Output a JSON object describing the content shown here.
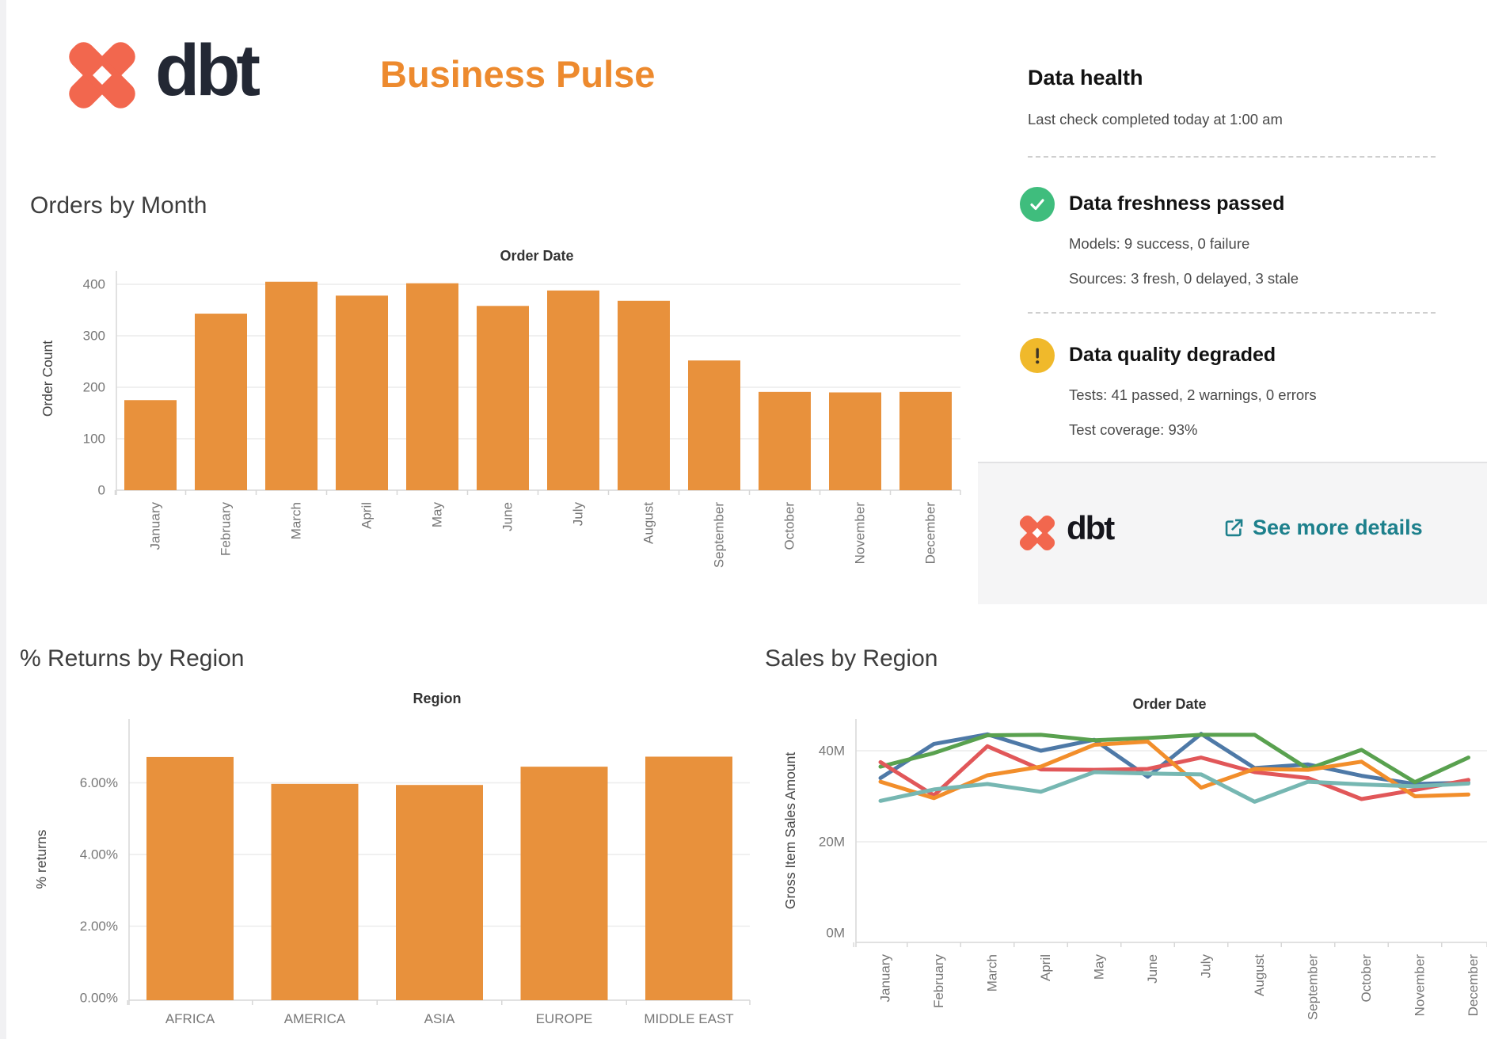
{
  "header": {
    "brand_wordmark": "dbt",
    "title": "Business Pulse"
  },
  "data_health": {
    "title": "Data health",
    "subtitle": "Last check completed today at 1:00 am",
    "freshness": {
      "title": "Data freshness passed",
      "line1": "Models: 9 success, 0 failure",
      "line2": "Sources: 3 fresh, 0 delayed, 3 stale"
    },
    "quality": {
      "title": "Data quality degraded",
      "line1": "Tests: 41 passed, 2 warnings, 0 errors",
      "line2": "Test coverage: 93%"
    },
    "footer": {
      "brand_wordmark": "dbt",
      "link_label": "See more details"
    }
  },
  "colors": {
    "bar_orange": "#E8913C",
    "brand_coral": "#F2674E",
    "title_orange": "#ED8A2E",
    "link_teal": "#1D808C",
    "success_green": "#3FBD7D",
    "warning_yellow": "#F0B92B"
  },
  "chart_data": [
    {
      "id": "orders-by-month",
      "type": "bar",
      "heading": "Orders by Month",
      "title": "Order Date",
      "ylabel": "Order Count",
      "categories": [
        "January",
        "February",
        "March",
        "April",
        "May",
        "June",
        "July",
        "August",
        "September",
        "October",
        "November",
        "December"
      ],
      "values": [
        175,
        343,
        405,
        378,
        402,
        358,
        388,
        368,
        252,
        191,
        190,
        191
      ],
      "yticks": [
        0,
        100,
        200,
        300,
        400
      ],
      "ytick_labels": [
        "0",
        "100",
        "200",
        "300",
        "400"
      ],
      "ylim": [
        0,
        430
      ],
      "grid": true,
      "bar_color": "#E8913C"
    },
    {
      "id": "returns-by-region",
      "type": "bar",
      "heading": "% Returns by Region",
      "title": "Region",
      "ylabel": "% returns",
      "categories": [
        "AFRICA",
        "AMERICA",
        "ASIA",
        "EUROPE",
        "MIDDLE EAST"
      ],
      "values": [
        6.72,
        5.97,
        5.94,
        6.45,
        6.73
      ],
      "yticks": [
        0,
        2,
        4,
        6
      ],
      "ytick_labels": [
        "0.00%",
        "2.00%",
        "4.00%",
        "6.00%"
      ],
      "ylim": [
        0,
        7.8
      ],
      "grid": true,
      "bar_color": "#E8913C"
    },
    {
      "id": "sales-by-region",
      "type": "line",
      "heading": "Sales by Region",
      "title": "Order Date",
      "ylabel": "Gross Item Sales Amount",
      "categories": [
        "January",
        "February",
        "March",
        "April",
        "May",
        "June",
        "July",
        "August",
        "September",
        "October",
        "November",
        "December"
      ],
      "yticks": [
        0,
        20,
        40
      ],
      "ytick_labels": [
        "0M",
        "20M",
        "40M"
      ],
      "ylim": [
        0,
        47
      ],
      "grid": true,
      "legend": "none",
      "series": [
        {
          "name": "blue",
          "color": "#4E79A7",
          "values": [
            34,
            41.5,
            43.6,
            40,
            42.4,
            34.3,
            43.7,
            36.2,
            37,
            34.5,
            32.7,
            33
          ]
        },
        {
          "name": "green",
          "color": "#59A14F",
          "values": [
            36.5,
            39.5,
            43.4,
            43.5,
            42.3,
            42.8,
            43.5,
            43.5,
            36,
            40.2,
            33.1,
            38.5
          ]
        },
        {
          "name": "red",
          "color": "#E15759",
          "values": [
            37.5,
            30.2,
            41,
            35.9,
            35.8,
            36,
            38.5,
            35.3,
            34,
            29.4,
            31.4,
            33.6
          ]
        },
        {
          "name": "orange",
          "color": "#F28E2B",
          "values": [
            33.2,
            29.6,
            34.6,
            36.5,
            41.3,
            42,
            31.9,
            36,
            35.8,
            37.6,
            30,
            30.4
          ]
        },
        {
          "name": "teal",
          "color": "#76B7B2",
          "values": [
            29,
            31.5,
            32.7,
            31,
            35.3,
            35,
            34.8,
            28.8,
            33.2,
            32.6,
            32.2,
            32.8
          ]
        }
      ]
    }
  ]
}
